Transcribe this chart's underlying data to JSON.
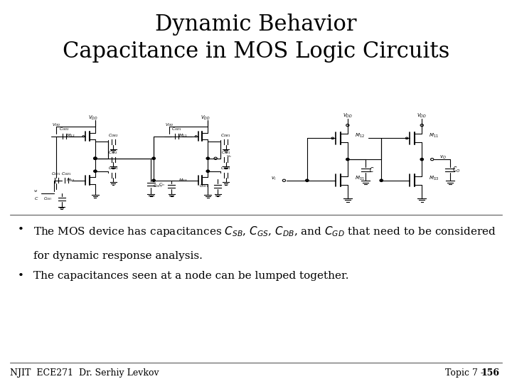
{
  "title_line1": "Dynamic Behavior",
  "title_line2": "Capacitance in MOS Logic Circuits",
  "title_fontsize": 22,
  "title_font": "serif",
  "bullet1_line1": "The MOS device has capacitances $C_{SB}$, $C_{GS}$, $C_{DB}$, and $C_{GD}$ that need to be considered",
  "bullet1_line2": "for dynamic response analysis.",
  "bullet2": "The capacitances seen at a node can be lumped together.",
  "footer_left": "NJIT  ECE271  Dr. Serhiy Levkov",
  "footer_right_plain": "Topic 7 - ",
  "footer_right_bold": "156",
  "bg_color": "#ffffff",
  "text_color": "#000000",
  "bullet_fontsize": 11,
  "footer_fontsize": 9
}
